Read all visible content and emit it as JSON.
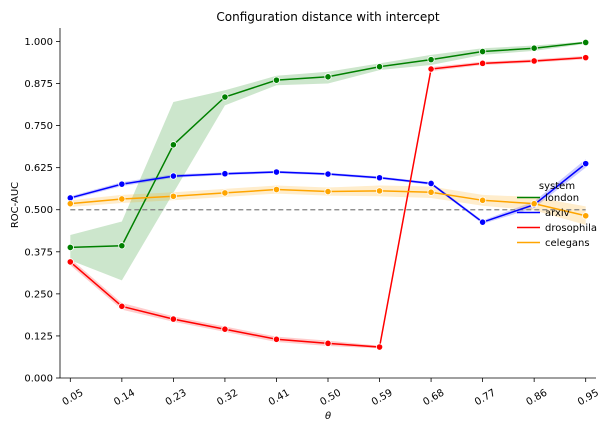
{
  "chart_data": {
    "type": "line",
    "title": "Configuration distance with intercept",
    "xlabel": "θ",
    "ylabel": "ROC-AUC",
    "x": [
      0.05,
      0.14,
      0.23,
      0.32,
      0.41,
      0.5,
      0.59,
      0.68,
      0.77,
      0.86,
      0.95
    ],
    "x_tick_labels": [
      "0.05",
      "0.14",
      "0.23",
      "0.32",
      "0.41",
      "0.50",
      "0.59",
      "0.68",
      "0.77",
      "0.86",
      "0.95"
    ],
    "ylim": [
      0.0,
      1.04
    ],
    "y_ticks": [
      0.0,
      0.125,
      0.25,
      0.375,
      0.5,
      0.625,
      0.75,
      0.875,
      1.0
    ],
    "y_tick_labels": [
      "0.000",
      "0.125",
      "0.250",
      "0.375",
      "0.500",
      "0.625",
      "0.750",
      "0.875",
      "1.000"
    ],
    "reference_line": {
      "y": 0.5,
      "style": "dashed",
      "color": "#808080"
    },
    "legend": {
      "title": "system",
      "placement": "right"
    },
    "series": [
      {
        "name": "london",
        "color": "#008000",
        "values": [
          0.388,
          0.393,
          0.693,
          0.835,
          0.885,
          0.895,
          0.925,
          0.946,
          0.97,
          0.98,
          0.997
        ],
        "ci_lower": [
          0.35,
          0.29,
          0.55,
          0.81,
          0.87,
          0.875,
          0.915,
          0.93,
          0.96,
          0.972,
          0.993
        ],
        "ci_upper": [
          0.425,
          0.465,
          0.82,
          0.855,
          0.898,
          0.91,
          0.935,
          0.96,
          0.98,
          0.988,
          1.0
        ]
      },
      {
        "name": "arxiv",
        "color": "#0000ff",
        "values": [
          0.535,
          0.576,
          0.6,
          0.607,
          0.612,
          0.606,
          0.595,
          0.578,
          0.463,
          0.515,
          0.637
        ],
        "ci_lower": [
          0.53,
          0.57,
          0.595,
          0.603,
          0.608,
          0.602,
          0.591,
          0.574,
          0.458,
          0.505,
          0.625
        ],
        "ci_upper": [
          0.54,
          0.582,
          0.605,
          0.611,
          0.616,
          0.61,
          0.599,
          0.582,
          0.468,
          0.525,
          0.65
        ]
      },
      {
        "name": "drosophila",
        "color": "#ff0000",
        "values": [
          0.345,
          0.213,
          0.175,
          0.145,
          0.115,
          0.103,
          0.092,
          0.918,
          0.935,
          0.942,
          0.952
        ],
        "ci_lower": [
          0.335,
          0.203,
          0.167,
          0.137,
          0.107,
          0.095,
          0.088,
          0.912,
          0.93,
          0.937,
          0.947
        ],
        "ci_upper": [
          0.355,
          0.223,
          0.183,
          0.153,
          0.123,
          0.111,
          0.096,
          0.924,
          0.94,
          0.947,
          0.957
        ]
      },
      {
        "name": "celegans",
        "color": "#ffa500",
        "values": [
          0.518,
          0.532,
          0.54,
          0.55,
          0.56,
          0.554,
          0.556,
          0.552,
          0.528,
          0.518,
          0.482
        ],
        "ci_lower": [
          0.508,
          0.52,
          0.528,
          0.538,
          0.548,
          0.542,
          0.54,
          0.535,
          0.512,
          0.498,
          0.455
        ],
        "ci_upper": [
          0.528,
          0.544,
          0.552,
          0.562,
          0.572,
          0.566,
          0.572,
          0.569,
          0.544,
          0.538,
          0.51
        ]
      }
    ]
  }
}
